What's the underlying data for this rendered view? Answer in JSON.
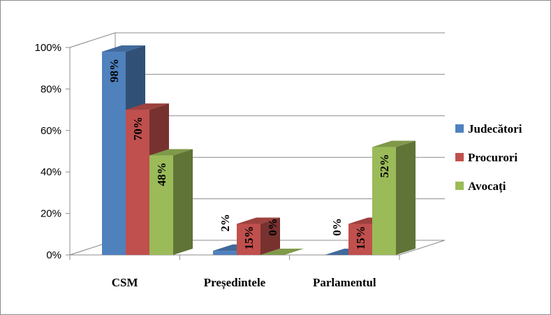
{
  "chart_data": {
    "type": "bar",
    "three_d": true,
    "categories": [
      "CSM",
      "Președintele",
      "Parlamentul"
    ],
    "series": [
      {
        "name": "Judecători",
        "values": [
          98,
          2,
          0
        ],
        "labels": [
          "98%",
          "2%",
          "0%"
        ],
        "color": "#4F81BD"
      },
      {
        "name": "Procurori",
        "values": [
          70,
          15,
          15
        ],
        "labels": [
          "70%",
          "15%",
          "15%"
        ],
        "color": "#C0504D"
      },
      {
        "name": "Avocați",
        "values": [
          48,
          0,
          52
        ],
        "labels": [
          "48%",
          "0%",
          "52%"
        ],
        "color": "#9BBB59"
      }
    ],
    "yticks": [
      "0%",
      "20%",
      "40%",
      "60%",
      "80%",
      "100%"
    ],
    "ylim": [
      0,
      100
    ],
    "grid": true,
    "legend_position": "right"
  }
}
